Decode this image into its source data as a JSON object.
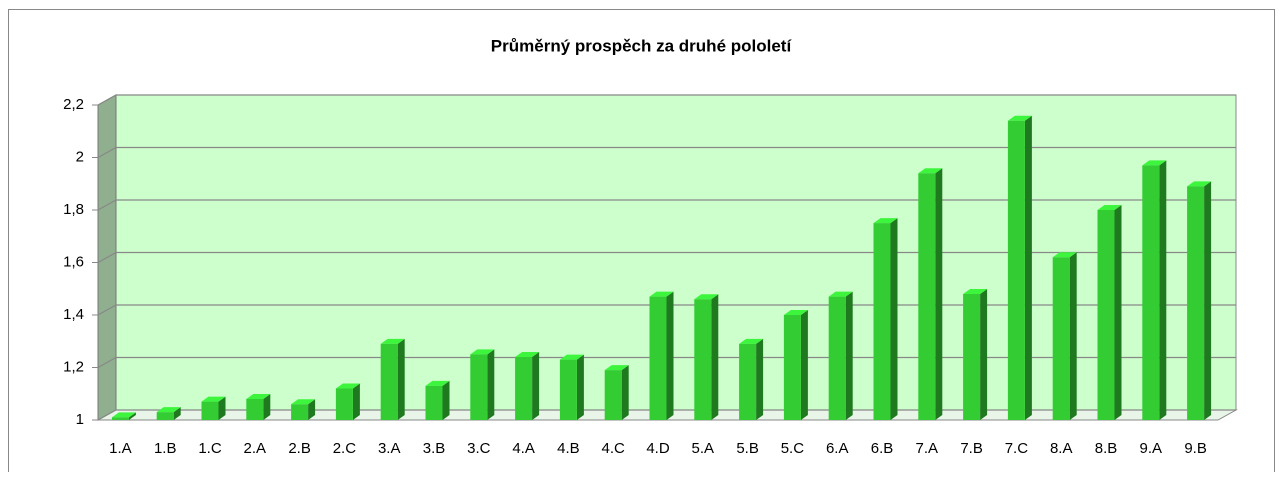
{
  "chart_data": {
    "type": "bar",
    "title": "Průměrný prospěch za druhé pololetí",
    "categories": [
      "1.A",
      "1.B",
      "1.C",
      "2.A",
      "2.B",
      "2.C",
      "3.A",
      "3.B",
      "3.C",
      "4.A",
      "4.B",
      "4.C",
      "4.D",
      "5.A",
      "5.B",
      "5.C",
      "6.A",
      "6.B",
      "7.A",
      "7.B",
      "7.C",
      "8.A",
      "8.B",
      "9.A",
      "9.B"
    ],
    "values": [
      1.01,
      1.03,
      1.07,
      1.08,
      1.06,
      1.12,
      1.29,
      1.13,
      1.25,
      1.24,
      1.23,
      1.19,
      1.47,
      1.46,
      1.29,
      1.4,
      1.47,
      1.75,
      1.94,
      1.48,
      2.14,
      1.62,
      1.8,
      1.97,
      1.89
    ],
    "color": "#33cc33",
    "ylim": [
      1,
      2.2
    ],
    "yticks": [
      1,
      {
        "value": 1.2,
        "label": "1,2"
      },
      {
        "value": 1.4,
        "label": "1,4"
      },
      {
        "value": 1.6,
        "label": "1,6"
      },
      {
        "value": 1.8,
        "label": "1,8"
      },
      2,
      {
        "value": 2.2,
        "label": "2,2"
      }
    ],
    "grid": true
  }
}
